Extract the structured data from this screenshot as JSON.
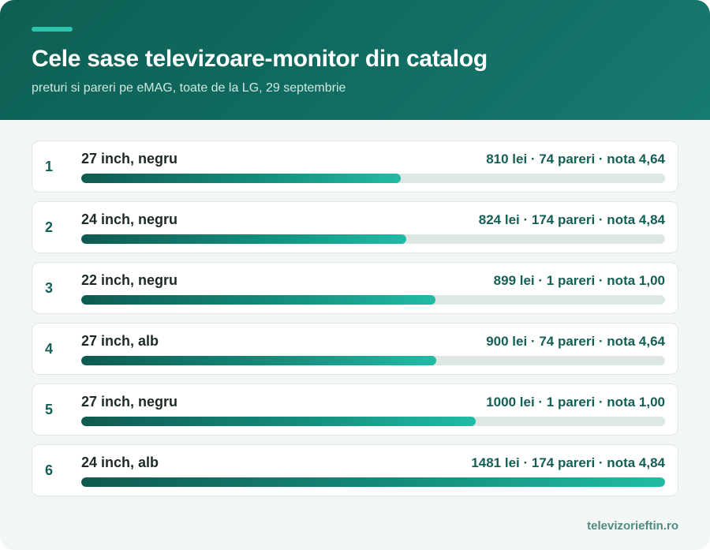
{
  "header": {
    "title": "Cele sase televizoare-monitor din catalog",
    "subtitle": "preturi si pareri pe eMAG, toate de la LG, 29 septembrie"
  },
  "footer": {
    "site": "televizorieftin.ro"
  },
  "colors": {
    "header_bg": "#116d62",
    "accent": "#2bc5ad",
    "bar_start": "#0f5a50",
    "bar_end": "#22bba6",
    "track": "#dde8e5"
  },
  "chart_data": {
    "type": "bar",
    "orientation": "horizontal",
    "title": "Cele sase televizoare-monitor din catalog",
    "subtitle": "preturi si pareri pe eMAG, toate de la LG, 29 septembrie",
    "xlim": [
      0,
      1481
    ],
    "rows": [
      {
        "rank": "1",
        "label": "27 inch, negru",
        "price": 810,
        "meta": "810 lei · 74 pareri · nota 4,64"
      },
      {
        "rank": "2",
        "label": "24 inch, negru",
        "price": 824,
        "meta": "824 lei · 174 pareri · nota 4,84"
      },
      {
        "rank": "3",
        "label": "22 inch, negru",
        "price": 899,
        "meta": "899 lei · 1 pareri · nota 1,00"
      },
      {
        "rank": "4",
        "label": "27 inch, alb",
        "price": 900,
        "meta": "900 lei · 74 pareri · nota 4,64"
      },
      {
        "rank": "5",
        "label": "27 inch, negru",
        "price": 1000,
        "meta": "1000 lei · 1 pareri · nota 1,00"
      },
      {
        "rank": "6",
        "label": "24 inch, alb",
        "price": 1481,
        "meta": "1481 lei · 174 pareri · nota 4,84"
      }
    ]
  }
}
